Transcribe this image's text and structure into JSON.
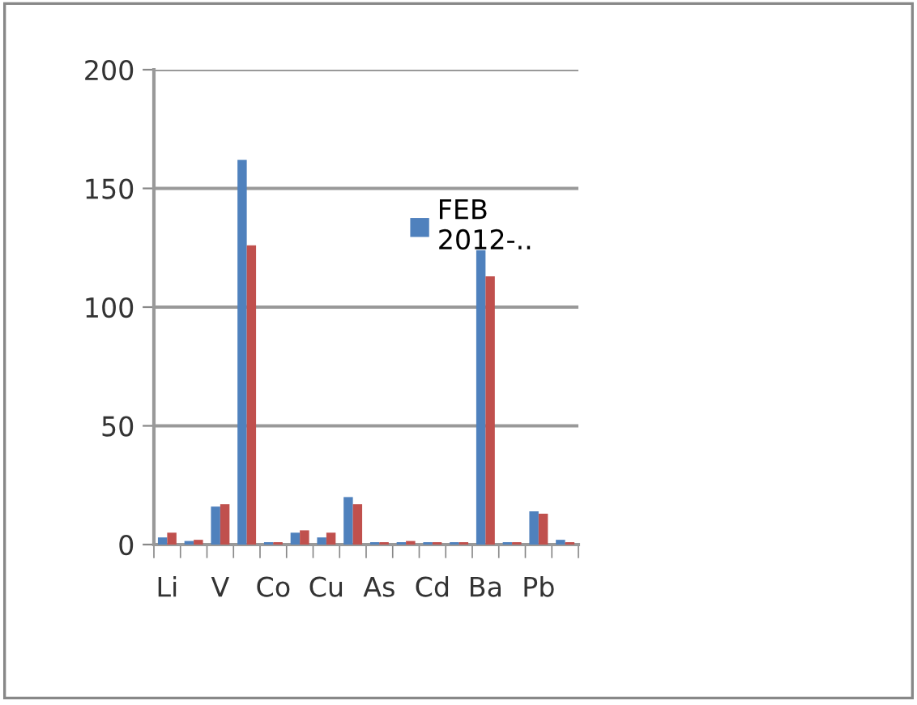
{
  "chart_data": {
    "type": "bar",
    "categories": [
      "Li",
      null,
      "V",
      null,
      "Co",
      null,
      "Cu",
      null,
      "As",
      null,
      "Cd",
      null,
      "Ba",
      null,
      "Pb",
      null
    ],
    "series": [
      {
        "name": "FEB 2012-..",
        "color": "#4f81bd",
        "values": [
          3,
          1.5,
          16,
          162,
          1,
          5,
          3,
          20,
          1,
          1,
          1,
          1,
          124,
          1,
          14,
          2
        ]
      },
      {
        "color": "#c0504d",
        "values": [
          5,
          2,
          17,
          126,
          1,
          6,
          5,
          17,
          1,
          1.5,
          1,
          1,
          113,
          1,
          13,
          1
        ]
      }
    ],
    "ylim": [
      0,
      200
    ],
    "yticks": [
      0,
      50,
      100,
      150,
      200
    ],
    "grid": "y",
    "legend": "top right"
  }
}
